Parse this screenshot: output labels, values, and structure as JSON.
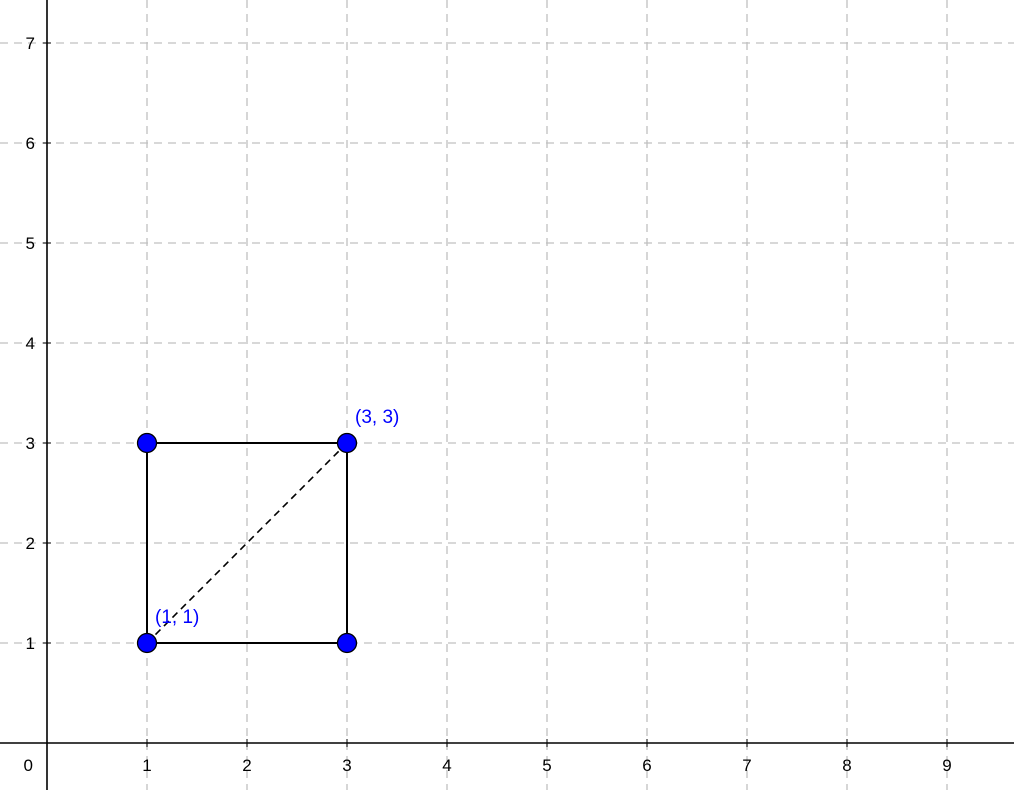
{
  "graph": {
    "axes": {
      "x_ticks": [
        "1",
        "2",
        "3",
        "4",
        "5",
        "6",
        "7",
        "8",
        "9"
      ],
      "y_ticks": [
        "1",
        "2",
        "3",
        "4",
        "5",
        "6",
        "7"
      ],
      "origin_label": "0",
      "x_range": [
        -0.47,
        9.67
      ],
      "y_range": [
        -0.47,
        7.43
      ]
    },
    "grid": true,
    "square": {
      "vertices": [
        {
          "x": 1,
          "y": 1
        },
        {
          "x": 3,
          "y": 1
        },
        {
          "x": 3,
          "y": 3
        },
        {
          "x": 1,
          "y": 3
        }
      ]
    },
    "diagonal": {
      "from": {
        "x": 1,
        "y": 1
      },
      "to": {
        "x": 3,
        "y": 3
      }
    },
    "point_labels": [
      {
        "text": "(1, 1)",
        "x": 1,
        "y": 1
      },
      {
        "text": "(3, 3)",
        "x": 3,
        "y": 3
      }
    ],
    "colors": {
      "point_fill": "#0000ff",
      "label": "#0000ff",
      "grid": "#c0c0c0",
      "axis": "#000000",
      "line": "#000000"
    }
  }
}
